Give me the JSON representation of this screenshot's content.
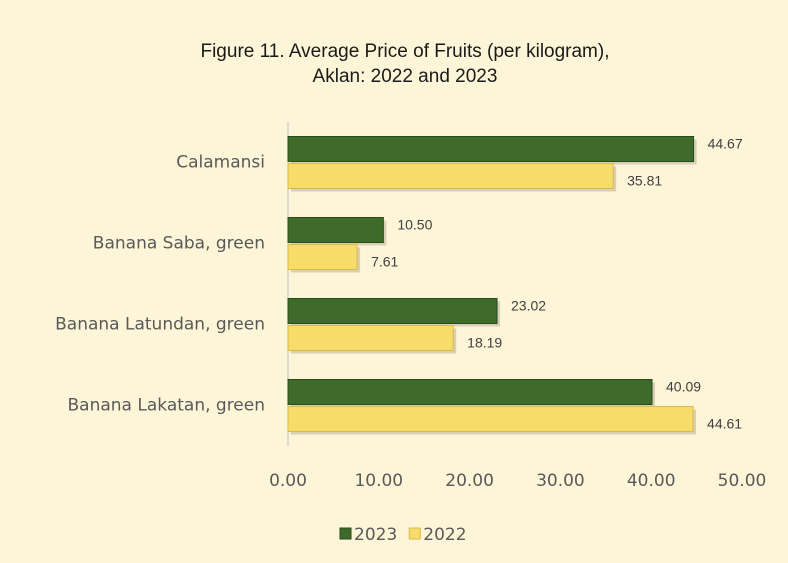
{
  "chart_data": {
    "type": "hbar",
    "title": [
      "Figure 11. Average Price of Fruits  (per kilogram),",
      "Aklan: 2022 and 2023"
    ],
    "categories": [
      "Calamansi",
      "Banana Saba, green",
      "Banana Latundan, green",
      "Banana Lakatan, green"
    ],
    "series": [
      {
        "name": "2023",
        "color": "#3e6b2a",
        "values": [
          44.67,
          10.5,
          23.02,
          40.09
        ],
        "value_labels": [
          "44.67",
          "10.50",
          "23.02",
          "40.09"
        ]
      },
      {
        "name": "2022",
        "color": "#f7dc6a",
        "values": [
          35.81,
          7.61,
          18.19,
          44.61
        ],
        "value_labels": [
          "35.81",
          "7.61",
          "18.19",
          "44.61"
        ]
      }
    ],
    "xlim": [
      0,
      50
    ],
    "xticks": [
      {
        "value": 0,
        "label": "0.00"
      },
      {
        "value": 10,
        "label": "10.00"
      },
      {
        "value": 20,
        "label": "20.00"
      },
      {
        "value": 30,
        "label": "30.00"
      },
      {
        "value": 40,
        "label": "40.00"
      },
      {
        "value": 50,
        "label": "50.00"
      }
    ],
    "legend": "bottom"
  }
}
